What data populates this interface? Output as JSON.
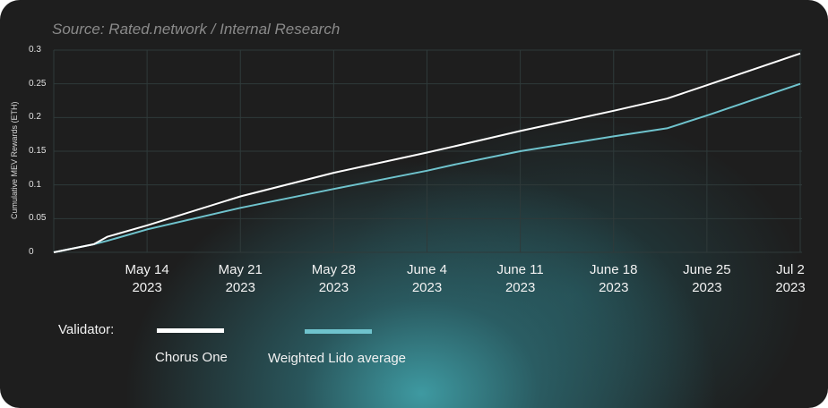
{
  "source_text": "Source: Rated.network / Internal Research",
  "chart_data": {
    "type": "line",
    "title": "",
    "subtitle": "Source: Rated.network / Internal Research",
    "xlabel": "",
    "ylabel": "Cumulative MEV Rewards (ETH)",
    "ylim": [
      0,
      0.3
    ],
    "yticks": [
      "0",
      "0.05",
      "0.1",
      "0.15",
      "0.2",
      "0.25",
      "0.3"
    ],
    "xticks": [
      {
        "line1": "May 14",
        "line2": "2023"
      },
      {
        "line1": "May 21",
        "line2": "2023"
      },
      {
        "line1": "May 28",
        "line2": "2023"
      },
      {
        "line1": "June 4",
        "line2": "2023"
      },
      {
        "line1": "June 11",
        "line2": "2023"
      },
      {
        "line1": "June 18",
        "line2": "2023"
      },
      {
        "line1": "June 25",
        "line2": "2023"
      },
      {
        "line1": "Jul 2",
        "line2": "2023"
      }
    ],
    "x": [
      "May 7",
      "May 10",
      "May 11",
      "May 14",
      "May 21",
      "May 28",
      "June 4",
      "June 6",
      "June 11",
      "June 18",
      "June 22",
      "June 25",
      "Jul 2"
    ],
    "series": [
      {
        "name": "Chorus One",
        "color": "#ffffff",
        "values": [
          0,
          0.012,
          0.023,
          0.04,
          0.083,
          0.118,
          0.148,
          0.157,
          0.18,
          0.21,
          0.228,
          0.248,
          0.295
        ]
      },
      {
        "name": "Weighted Lido average",
        "color": "#6fc3cd",
        "values": [
          0,
          0.012,
          0.017,
          0.034,
          0.066,
          0.094,
          0.121,
          0.13,
          0.15,
          0.172,
          0.184,
          0.203,
          0.25
        ]
      }
    ],
    "grid": true,
    "legend_position": "bottom-left",
    "legend_title": "Validator:"
  },
  "legend": {
    "title": "Validator:",
    "items": [
      {
        "label": "Chorus One",
        "color": "#ffffff"
      },
      {
        "label": "Weighted Lido average",
        "color": "#6fc3cd"
      }
    ]
  }
}
